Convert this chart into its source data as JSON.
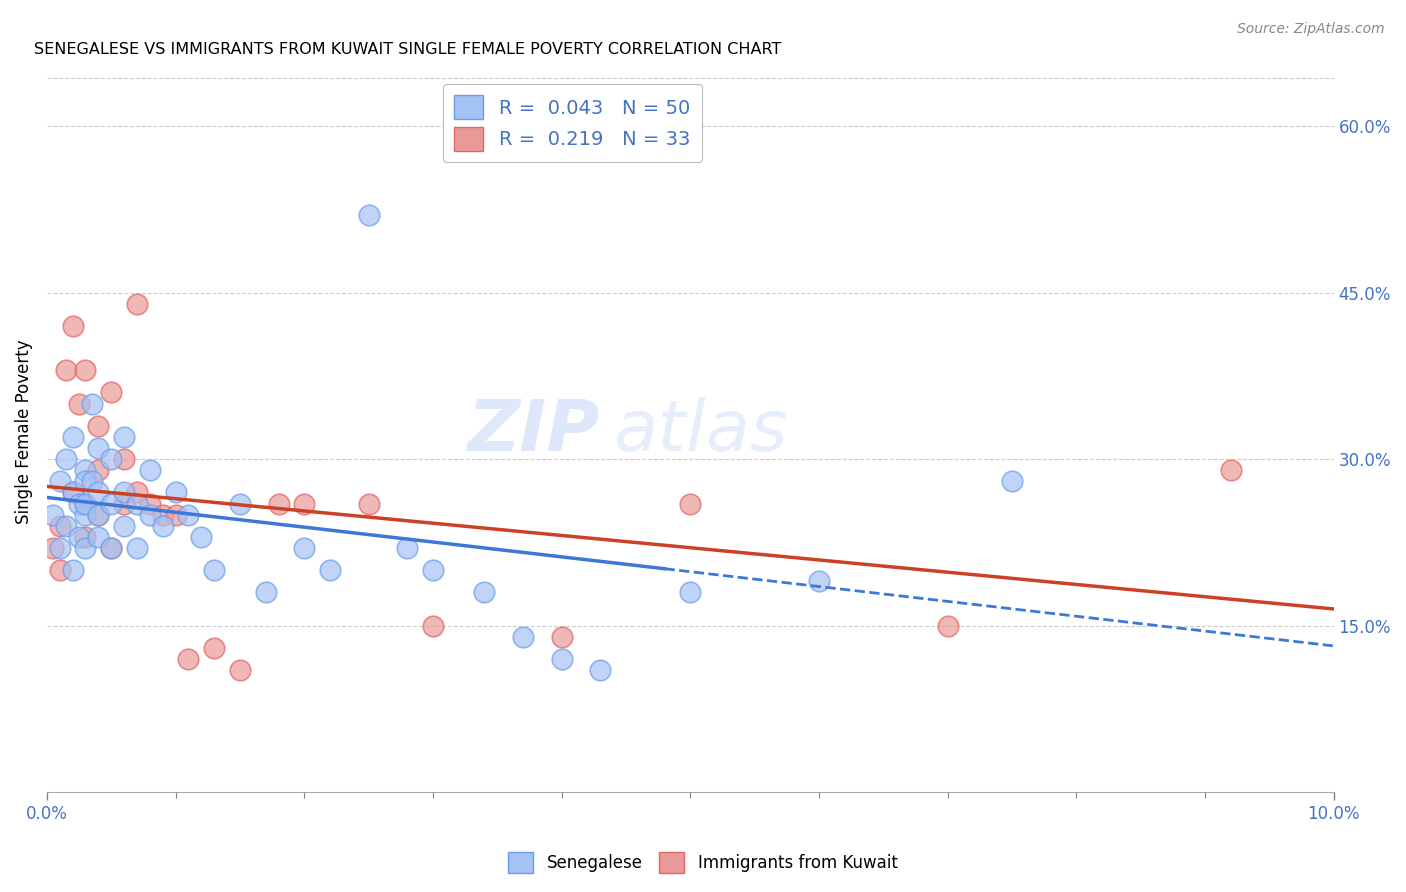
{
  "title": "SENEGALESE VS IMMIGRANTS FROM KUWAIT SINGLE FEMALE POVERTY CORRELATION CHART",
  "source": "Source: ZipAtlas.com",
  "ylabel": "Single Female Poverty",
  "x_min": 0.0,
  "x_max": 0.1,
  "y_min": 0.0,
  "y_max": 0.65,
  "y_ticks_right": [
    0.15,
    0.3,
    0.45,
    0.6
  ],
  "y_tick_labels_right": [
    "15.0%",
    "30.0%",
    "45.0%",
    "60.0%"
  ],
  "x_tick_labels_ends": [
    "0.0%",
    "10.0%"
  ],
  "grid_color": "#cccccc",
  "background_color": "#ffffff",
  "blue_color": "#a4c2f4",
  "pink_color": "#ea9999",
  "blue_edge_color": "#6d9eeb",
  "pink_edge_color": "#e06666",
  "blue_line_color": "#3c78d8",
  "pink_line_color": "#cc4125",
  "text_color": "#4472c4",
  "watermark_zip": "ZIP",
  "watermark_atlas": "atlas",
  "legend_R_blue": "0.043",
  "legend_N_blue": "50",
  "legend_R_pink": "0.219",
  "legend_N_pink": "33",
  "senegalese_x": [
    0.0005,
    0.001,
    0.001,
    0.0015,
    0.0015,
    0.002,
    0.002,
    0.002,
    0.0025,
    0.0025,
    0.003,
    0.003,
    0.003,
    0.003,
    0.003,
    0.0035,
    0.0035,
    0.004,
    0.004,
    0.004,
    0.004,
    0.005,
    0.005,
    0.005,
    0.006,
    0.006,
    0.006,
    0.007,
    0.007,
    0.008,
    0.008,
    0.009,
    0.01,
    0.011,
    0.012,
    0.013,
    0.015,
    0.017,
    0.02,
    0.022,
    0.025,
    0.028,
    0.03,
    0.034,
    0.037,
    0.04,
    0.043,
    0.05,
    0.06,
    0.075
  ],
  "senegalese_y": [
    0.25,
    0.28,
    0.22,
    0.3,
    0.24,
    0.27,
    0.32,
    0.2,
    0.26,
    0.23,
    0.29,
    0.25,
    0.28,
    0.22,
    0.26,
    0.35,
    0.28,
    0.31,
    0.25,
    0.27,
    0.23,
    0.3,
    0.26,
    0.22,
    0.27,
    0.32,
    0.24,
    0.26,
    0.22,
    0.29,
    0.25,
    0.24,
    0.27,
    0.25,
    0.23,
    0.2,
    0.26,
    0.18,
    0.22,
    0.2,
    0.52,
    0.22,
    0.2,
    0.18,
    0.14,
    0.12,
    0.11,
    0.18,
    0.19,
    0.28
  ],
  "kuwait_x": [
    0.0005,
    0.001,
    0.001,
    0.0015,
    0.002,
    0.002,
    0.0025,
    0.003,
    0.003,
    0.003,
    0.004,
    0.004,
    0.004,
    0.005,
    0.005,
    0.006,
    0.006,
    0.007,
    0.007,
    0.008,
    0.009,
    0.01,
    0.011,
    0.013,
    0.015,
    0.018,
    0.02,
    0.025,
    0.03,
    0.04,
    0.05,
    0.07,
    0.092
  ],
  "kuwait_y": [
    0.22,
    0.2,
    0.24,
    0.38,
    0.42,
    0.27,
    0.35,
    0.38,
    0.26,
    0.23,
    0.29,
    0.33,
    0.25,
    0.36,
    0.22,
    0.3,
    0.26,
    0.44,
    0.27,
    0.26,
    0.25,
    0.25,
    0.12,
    0.13,
    0.11,
    0.26,
    0.26,
    0.26,
    0.15,
    0.14,
    0.26,
    0.15,
    0.29
  ],
  "blue_trend_x_end": 0.048,
  "blue_trend_color": "#3c78d8",
  "pink_trend_color": "#cc4125"
}
